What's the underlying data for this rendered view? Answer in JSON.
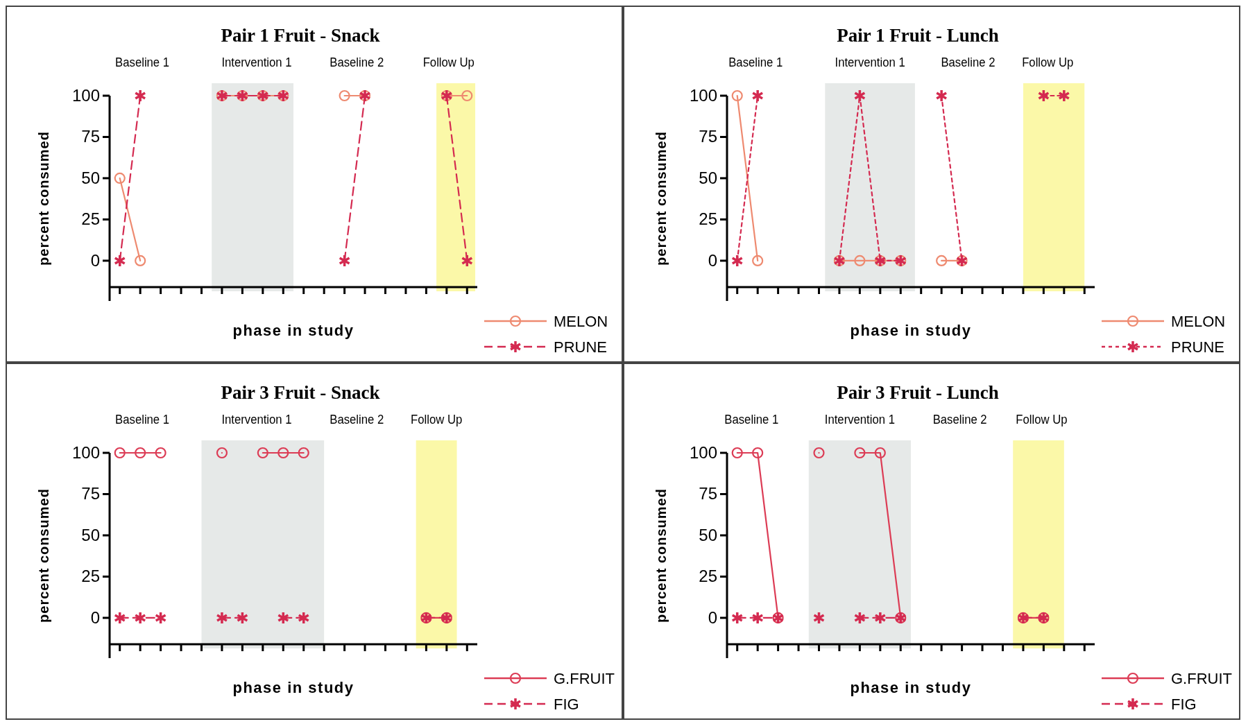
{
  "chart_data": [
    {
      "type": "line",
      "title": "Pair 1 Fruit - Snack",
      "xlabel": "phase in study",
      "ylabel": "percent consumed",
      "categories": [
        null,
        null,
        null,
        null,
        null,
        null,
        null,
        null,
        null,
        null,
        null,
        null,
        null,
        null,
        null,
        null,
        null,
        null
      ],
      "ylim": [
        -16,
        100
      ],
      "yticks": [
        0,
        25,
        50,
        75,
        100
      ],
      "legend": "bottom right",
      "annotations": [
        "Baseline 1",
        "Intervention 1",
        "Baseline 2",
        "Follow Up"
      ],
      "series": [
        {
          "name": "MELON",
          "color": "#ee8a70",
          "marker": "circle",
          "line_style": "solid",
          "values": [
            50,
            0,
            null,
            null,
            null,
            100,
            100,
            100,
            100,
            null,
            null,
            100,
            100,
            null,
            null,
            null,
            100,
            100
          ]
        },
        {
          "name": "PRUNE",
          "color": "#d42a50",
          "marker": "cross",
          "line_style": "dashed",
          "values": [
            0,
            100,
            null,
            null,
            null,
            100,
            100,
            100,
            100,
            null,
            null,
            0,
            100,
            null,
            null,
            null,
            100,
            0
          ]
        }
      ]
    },
    {
      "type": "line",
      "title": "Pair 1 Fruit - Lunch",
      "xlabel": "phase in study",
      "ylabel": "percent consumed",
      "categories": [
        null,
        null,
        null,
        null,
        null,
        null,
        null,
        null,
        null,
        null,
        null,
        null,
        null,
        null,
        null,
        null,
        null,
        null
      ],
      "ylim": [
        -16,
        100
      ],
      "yticks": [
        0,
        25,
        50,
        75,
        100
      ],
      "legend": "bottom right",
      "annotations": [
        "Baseline 1",
        "Intervention 1",
        "Baseline 2",
        "Follow Up"
      ],
      "series": [
        {
          "name": "MELON",
          "color": "#ee8a70",
          "marker": "circle",
          "line_style": "solid",
          "values": [
            100,
            0,
            null,
            null,
            null,
            0,
            0,
            0,
            0,
            null,
            0,
            0,
            null,
            null,
            null,
            null,
            null,
            null
          ]
        },
        {
          "name": "PRUNE",
          "color": "#d42a50",
          "marker": "cross",
          "line_style": "dotted",
          "values": [
            0,
            100,
            null,
            null,
            null,
            0,
            100,
            0,
            0,
            null,
            100,
            0,
            null,
            null,
            null,
            100,
            100,
            null
          ]
        }
      ]
    },
    {
      "type": "line",
      "title": "Pair 3  Fruit - Snack",
      "xlabel": "phase in study",
      "ylabel": "percent consumed",
      "categories": [
        null,
        null,
        null,
        null,
        null,
        null,
        null,
        null,
        null,
        null,
        null,
        null,
        null,
        null,
        null,
        null,
        null,
        null
      ],
      "ylim": [
        -16,
        100
      ],
      "yticks": [
        0,
        25,
        50,
        75,
        100
      ],
      "legend": "bottom right",
      "annotations": [
        "Baseline 1",
        "Intervention 1",
        "Baseline 2",
        "Follow Up"
      ],
      "series": [
        {
          "name": "G.FRUIT",
          "color": "#dc3c55",
          "marker": "circle",
          "line_style": "solid",
          "values": [
            100,
            100,
            100,
            null,
            null,
            100,
            null,
            100,
            100,
            100,
            null,
            null,
            null,
            null,
            null,
            0,
            0,
            null
          ]
        },
        {
          "name": "FIG",
          "color": "#d42a50",
          "marker": "cross",
          "line_style": "dashed",
          "values": [
            0,
            0,
            0,
            null,
            null,
            0,
            0,
            null,
            0,
            0,
            null,
            null,
            null,
            null,
            null,
            0,
            0,
            null
          ]
        }
      ]
    },
    {
      "type": "line",
      "title": "Pair 3  Fruit - Lunch",
      "xlabel": "phase in study",
      "ylabel": "percent consumed",
      "categories": [
        null,
        null,
        null,
        null,
        null,
        null,
        null,
        null,
        null,
        null,
        null,
        null,
        null,
        null,
        null,
        null,
        null,
        null
      ],
      "ylim": [
        -16,
        100
      ],
      "yticks": [
        0,
        25,
        50,
        75,
        100
      ],
      "legend": "bottom right",
      "annotations": [
        "Baseline 1",
        "Intervention 1",
        "Baseline 2",
        "Follow Up"
      ],
      "series": [
        {
          "name": "G.FRUIT",
          "color": "#dc3c55",
          "marker": "circle",
          "line_style": "solid",
          "values": [
            100,
            100,
            0,
            null,
            100,
            null,
            100,
            100,
            0,
            null,
            null,
            null,
            null,
            null,
            0,
            0,
            null,
            null
          ]
        },
        {
          "name": "FIG",
          "color": "#d42a50",
          "marker": "cross",
          "line_style": "dashed",
          "values": [
            0,
            0,
            0,
            null,
            0,
            null,
            0,
            0,
            0,
            null,
            null,
            null,
            null,
            null,
            0,
            0,
            null,
            null
          ]
        }
      ]
    }
  ]
}
